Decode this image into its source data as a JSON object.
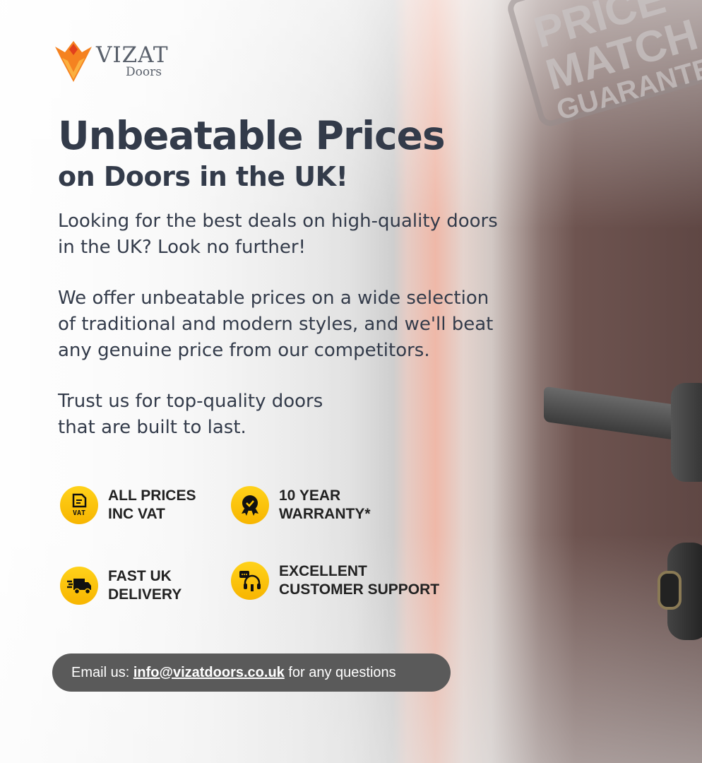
{
  "logo": {
    "brand": "VIZAT",
    "sub": "Doors"
  },
  "stamp": {
    "line1": "PRICE",
    "line2": "MATCH",
    "line3": "GUARANTEE"
  },
  "headline": "Unbeatable Prices",
  "subheadline": "on Doors in the UK!",
  "paragraphs": [
    [
      "Looking for the best deals on high-quality doors",
      "in the UK? Look no further!"
    ],
    [
      "We offer unbeatable prices on a wide selection",
      "of traditional and modern styles, and we'll beat",
      "any genuine price from our competitors."
    ],
    [
      "Trust us for top-quality doors",
      "that are built to last."
    ]
  ],
  "features": [
    {
      "icon": "vat-document-icon",
      "line1": "ALL PRICES",
      "line2": "INC VAT"
    },
    {
      "icon": "award-badge-icon",
      "line1": "10 YEAR",
      "line2": "WARRANTY*"
    },
    {
      "icon": "delivery-truck-icon",
      "line1": "FAST UK",
      "line2": "DELIVERY"
    },
    {
      "icon": "customer-support-headset-icon",
      "line1": "EXCELLENT",
      "line2": "CUSTOMER SUPPORT"
    }
  ],
  "contact": {
    "prefix": "Email us: ",
    "email": "info@vizatdoors.co.uk",
    "suffix": " for any questions"
  },
  "colors": {
    "heading": "#333b4a",
    "icon_bg": "#ffc400",
    "pill_bg": "#5a5a5a",
    "logo_orange": "#f26a1b"
  }
}
